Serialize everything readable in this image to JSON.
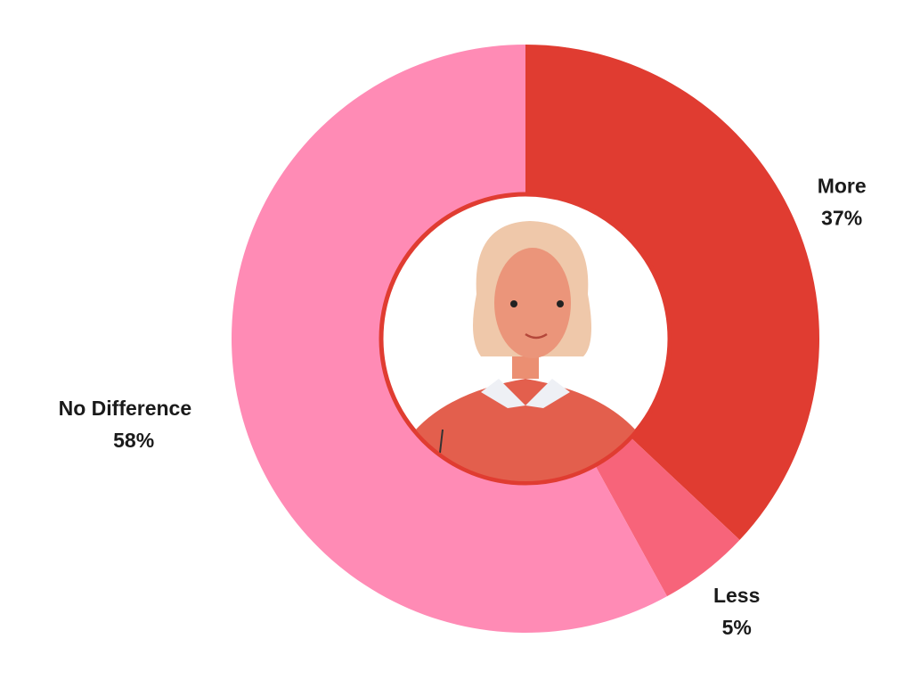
{
  "chart_data": {
    "type": "donut",
    "categories": [
      "More",
      "Less",
      "No Difference"
    ],
    "values": [
      37,
      5,
      58
    ],
    "value_labels": [
      "37%",
      "5%",
      "58%"
    ],
    "colors": [
      "#e03c31",
      "#f7647a",
      "#ff8bb5"
    ]
  }
}
